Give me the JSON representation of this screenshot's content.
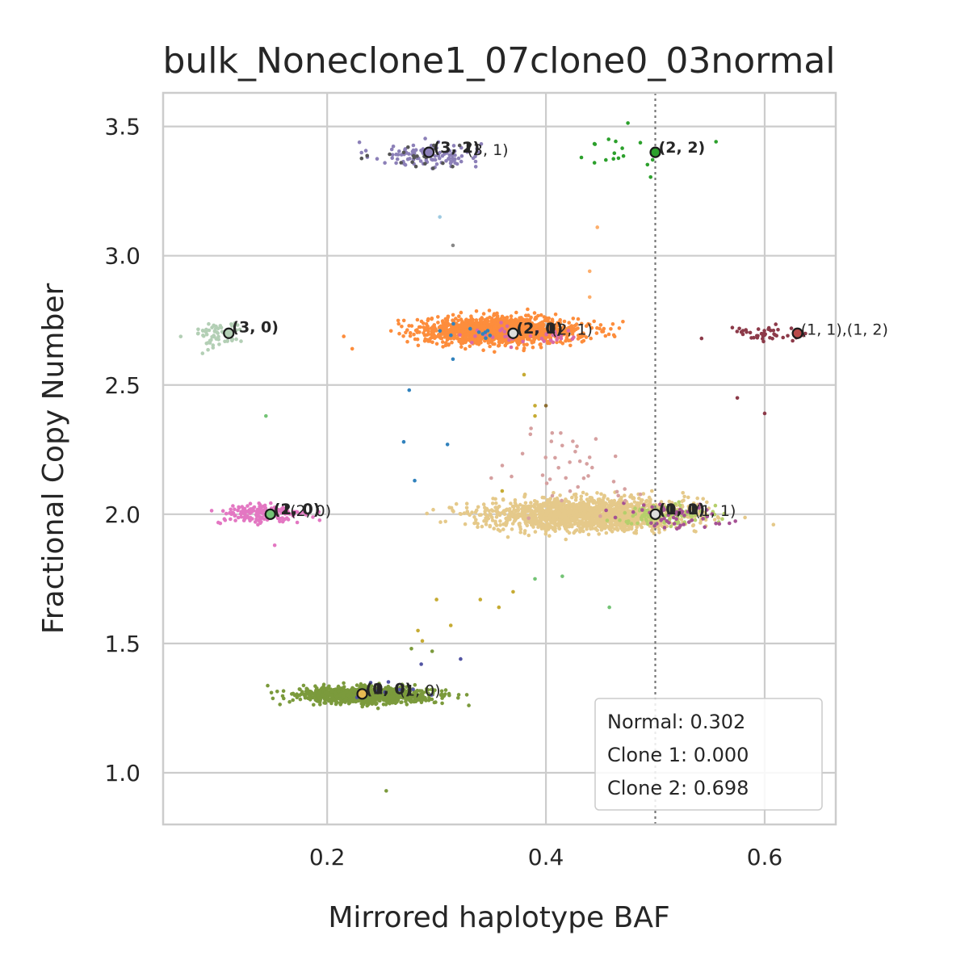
{
  "chart_data": {
    "type": "scatter",
    "title": "bulk_Noneclone1_07clone0_03normal",
    "xlabel": "Mirrored haplotype BAF",
    "ylabel": "Fractional Copy Number",
    "xlim": [
      0.05,
      0.665
    ],
    "ylim": [
      0.8,
      3.63
    ],
    "xticks": [
      0.2,
      0.4,
      0.6
    ],
    "xtick_labels": [
      "0.2",
      "0.4",
      "0.6"
    ],
    "yticks": [
      1.0,
      1.5,
      2.0,
      2.5,
      3.0,
      3.5
    ],
    "ytick_labels": [
      "1.0",
      "1.5",
      "2.0",
      "2.5",
      "3.0",
      "3.5"
    ],
    "grid": true,
    "vline": {
      "x": 0.5,
      "style": "dotted",
      "color": "#777777"
    },
    "clusters": [
      {
        "color": "#8c80b8",
        "cx": 0.29,
        "cy": 3.39,
        "sx": 0.025,
        "sy": 0.025,
        "n": 110
      },
      {
        "color": "#555555",
        "cx": 0.28,
        "cy": 3.38,
        "sx": 0.02,
        "sy": 0.03,
        "n": 20
      },
      {
        "color": "#2ca02c",
        "cx": 0.475,
        "cy": 3.41,
        "sx": 0.025,
        "sy": 0.04,
        "n": 18
      },
      {
        "color": "#b3cfb5",
        "cx": 0.1,
        "cy": 2.7,
        "sx": 0.012,
        "sy": 0.03,
        "n": 60
      },
      {
        "color": "#fd8d3c",
        "cx": 0.36,
        "cy": 2.71,
        "sx": 0.035,
        "sy": 0.025,
        "n": 1500
      },
      {
        "color": "#d96aa5",
        "cx": 0.38,
        "cy": 2.69,
        "sx": 0.035,
        "sy": 0.02,
        "n": 40
      },
      {
        "color": "#3182bd",
        "cx": 0.34,
        "cy": 2.7,
        "sx": 0.02,
        "sy": 0.02,
        "n": 10
      },
      {
        "color": "#8c3a49",
        "cx": 0.6,
        "cy": 2.7,
        "sx": 0.018,
        "sy": 0.02,
        "n": 45
      },
      {
        "color": "#e377c2",
        "cx": 0.14,
        "cy": 2.0,
        "sx": 0.02,
        "sy": 0.02,
        "n": 170
      },
      {
        "color": "#e5c98a",
        "cx": 0.44,
        "cy": 2.0,
        "sx": 0.045,
        "sy": 0.03,
        "n": 1700
      },
      {
        "color": "#b5cf6b",
        "cx": 0.51,
        "cy": 2.0,
        "sx": 0.02,
        "sy": 0.02,
        "n": 120
      },
      {
        "color": "#a55194",
        "cx": 0.52,
        "cy": 1.99,
        "sx": 0.03,
        "sy": 0.025,
        "n": 50
      },
      {
        "color": "#d6a0a0",
        "cx": 0.43,
        "cy": 2.2,
        "sx": 0.03,
        "sy": 0.08,
        "n": 40
      },
      {
        "color": "#7b9a3c",
        "cx": 0.235,
        "cy": 1.3,
        "sx": 0.03,
        "sy": 0.015,
        "n": 1000
      },
      {
        "color": "#5254a3",
        "cx": 0.25,
        "cy": 1.32,
        "sx": 0.02,
        "sy": 0.02,
        "n": 12
      }
    ],
    "outliers": [
      {
        "color": "#3182bd",
        "x": 0.275,
        "y": 2.48
      },
      {
        "color": "#3182bd",
        "x": 0.27,
        "y": 2.28
      },
      {
        "color": "#3182bd",
        "x": 0.31,
        "y": 2.27
      },
      {
        "color": "#3182bd",
        "x": 0.28,
        "y": 2.13
      },
      {
        "color": "#3182bd",
        "x": 0.315,
        "y": 2.6
      },
      {
        "color": "#9ecae1",
        "x": 0.303,
        "y": 3.15
      },
      {
        "color": "#888888",
        "x": 0.315,
        "y": 3.04
      },
      {
        "color": "#fdae6b",
        "x": 0.447,
        "y": 3.11
      },
      {
        "color": "#fdae6b",
        "x": 0.44,
        "y": 2.94
      },
      {
        "color": "#fdae6b",
        "x": 0.44,
        "y": 2.84
      },
      {
        "color": "#74c476",
        "x": 0.144,
        "y": 2.38
      },
      {
        "color": "#c6ab33",
        "x": 0.38,
        "y": 2.54
      },
      {
        "color": "#c6ab33",
        "x": 0.39,
        "y": 2.42
      },
      {
        "color": "#8c6d31",
        "x": 0.4,
        "y": 2.42
      },
      {
        "color": "#c6ab33",
        "x": 0.39,
        "y": 2.38
      },
      {
        "color": "#8c3a49",
        "x": 0.575,
        "y": 2.45
      },
      {
        "color": "#8c3a49",
        "x": 0.6,
        "y": 2.39
      },
      {
        "color": "#e377c2",
        "x": 0.152,
        "y": 1.88
      },
      {
        "color": "#c6ab33",
        "x": 0.36,
        "y": 2.09
      },
      {
        "color": "#c6ab33",
        "x": 0.34,
        "y": 1.67
      },
      {
        "color": "#c6ab33",
        "x": 0.357,
        "y": 1.64
      },
      {
        "color": "#c6ab33",
        "x": 0.3,
        "y": 1.67
      },
      {
        "color": "#c6ab33",
        "x": 0.313,
        "y": 1.57
      },
      {
        "color": "#c6ab33",
        "x": 0.283,
        "y": 1.55
      },
      {
        "color": "#c6ab33",
        "x": 0.287,
        "y": 1.51
      },
      {
        "color": "#74c476",
        "x": 0.415,
        "y": 1.76
      },
      {
        "color": "#74c476",
        "x": 0.39,
        "y": 1.75
      },
      {
        "color": "#74c476",
        "x": 0.458,
        "y": 1.64
      },
      {
        "color": "#5254a3",
        "x": 0.322,
        "y": 1.44
      },
      {
        "color": "#5254a3",
        "x": 0.286,
        "y": 1.42
      },
      {
        "color": "#7b9a3c",
        "x": 0.296,
        "y": 1.47
      },
      {
        "color": "#7b9a3c",
        "x": 0.277,
        "y": 1.48
      },
      {
        "color": "#7b9a3c",
        "x": 0.254,
        "y": 0.93
      },
      {
        "color": "#c6ab33",
        "x": 0.37,
        "y": 1.7
      },
      {
        "color": "#d6a0a0",
        "x": 0.35,
        "y": 2.14
      }
    ],
    "centroids": [
      {
        "x": 0.293,
        "y": 3.4,
        "fill": "#8c80b8"
      },
      {
        "x": 0.5,
        "y": 3.4,
        "fill": "#2ca02c"
      },
      {
        "x": 0.11,
        "y": 2.7,
        "fill": "#b3cfb5"
      },
      {
        "x": 0.37,
        "y": 2.7,
        "fill": "#dddddd"
      },
      {
        "x": 0.63,
        "y": 2.7,
        "fill": "#b84a4a"
      },
      {
        "x": 0.148,
        "y": 2.0,
        "fill": "#74c476"
      },
      {
        "x": 0.5,
        "y": 2.0,
        "fill": "#dddddd"
      },
      {
        "x": 0.232,
        "y": 1.305,
        "fill": "#e7ba52"
      }
    ],
    "annotations": [
      {
        "text": "(3, 1)",
        "x": 0.297,
        "y": 3.405,
        "bold": true
      },
      {
        "text": "(3, 2)",
        "x": 0.297,
        "y": 3.405,
        "bold": true
      },
      {
        "text": "(3, 1)",
        "x": 0.328,
        "y": 3.395,
        "bold": false
      },
      {
        "text": "(2, 2)",
        "x": 0.503,
        "y": 3.405,
        "bold": true
      },
      {
        "text": "(3, 0)",
        "x": 0.113,
        "y": 2.71,
        "bold": true
      },
      {
        "text": "(2, 1)",
        "x": 0.373,
        "y": 2.705,
        "bold": true
      },
      {
        "text": "(2, 0)",
        "x": 0.373,
        "y": 2.705,
        "bold": true
      },
      {
        "text": "(2, 1)",
        "x": 0.405,
        "y": 2.7,
        "bold": false
      },
      {
        "text": "(1, 1),(1, 2)",
        "x": 0.633,
        "y": 2.7,
        "bold": false
      },
      {
        "text": "(2, 0)",
        "x": 0.151,
        "y": 2.005,
        "bold": true
      },
      {
        "text": "(1, 0)",
        "x": 0.151,
        "y": 2.005,
        "bold": true
      },
      {
        "text": "(2, 0)",
        "x": 0.166,
        "y": 2.0,
        "bold": false
      },
      {
        "text": "(1, 1)",
        "x": 0.503,
        "y": 2.005,
        "bold": true
      },
      {
        "text": "(0, 0)",
        "x": 0.503,
        "y": 2.005,
        "bold": true
      },
      {
        "text": "(1, 1)",
        "x": 0.536,
        "y": 2.0,
        "bold": false
      },
      {
        "text": "(1, 0)",
        "x": 0.235,
        "y": 1.31,
        "bold": true
      },
      {
        "text": "(0, 0)",
        "x": 0.235,
        "y": 1.31,
        "bold": true
      },
      {
        "text": "(1, 0)",
        "x": 0.266,
        "y": 1.305,
        "bold": false
      }
    ],
    "legend": {
      "position": "lower right",
      "lines": [
        "Normal: 0.302",
        "Clone 1: 0.000",
        "Clone 2: 0.698"
      ]
    }
  }
}
